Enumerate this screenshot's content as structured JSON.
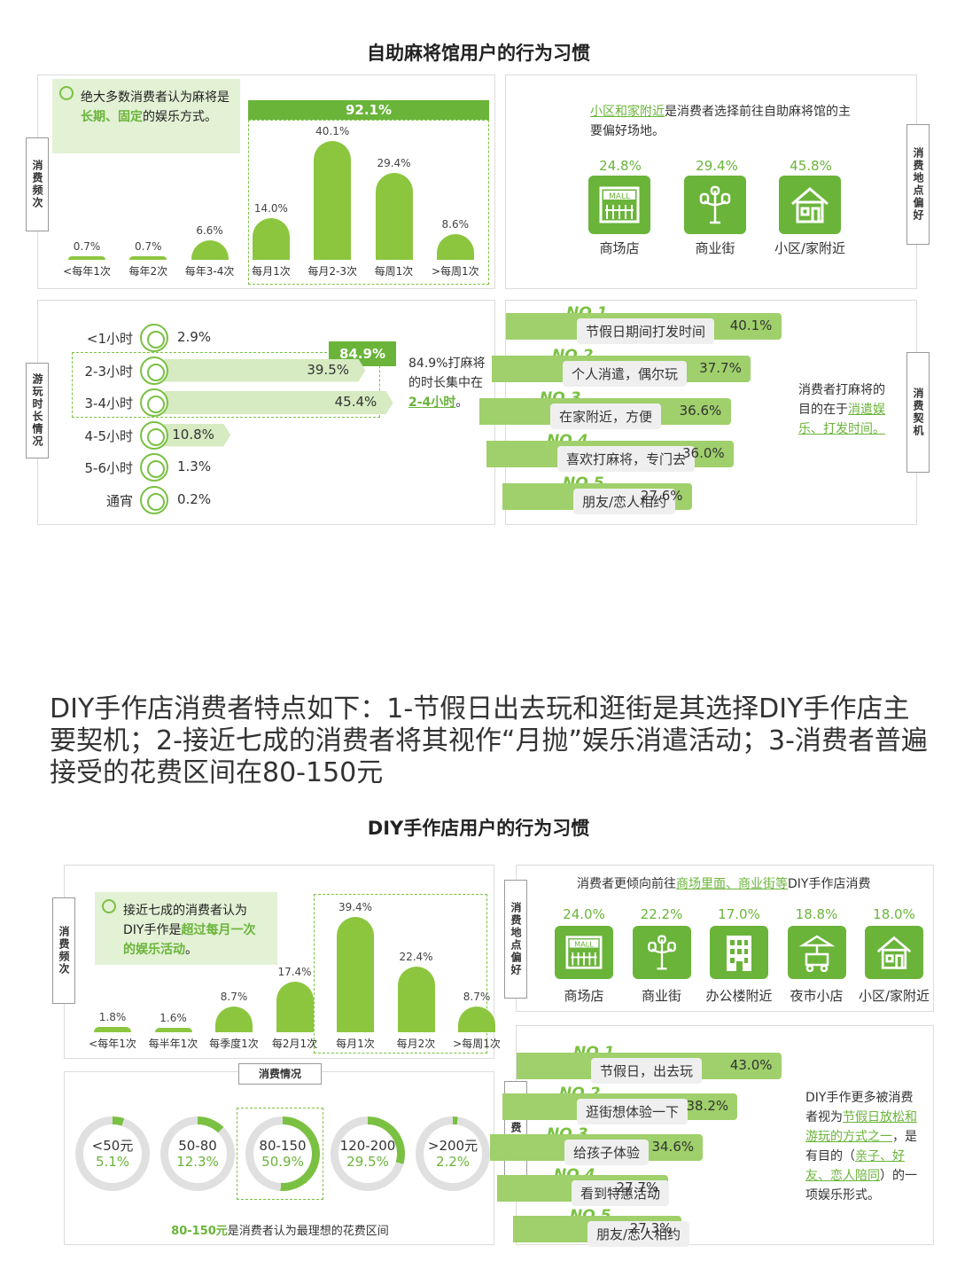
{
  "mahjong": {
    "title": "自助麻将馆用户的行为习惯",
    "freq": {
      "side_label": "消费频次",
      "callout": {
        "pre": "绝大多数消费者认为麻将是",
        "hl": "长期、固定",
        "post": "的娱乐方式。"
      },
      "highlight_total": "92.1%",
      "value_labels": [
        "0.7%",
        "0.7%",
        "6.6%",
        "14.0%",
        "40.1%",
        "29.4%",
        "8.6%"
      ]
    },
    "location": {
      "side_label": "消费地点偏好",
      "text_hl": "小区和家附近",
      "text_post": "是消费者选择前往自助麻将馆的主要偏好场地。",
      "items": [
        {
          "pct": "24.8%",
          "label": "商场店",
          "icon": "mall-icon"
        },
        {
          "pct": "29.4%",
          "label": "商业街",
          "icon": "street-lamp-icon"
        },
        {
          "pct": "45.8%",
          "label": "小区/家附近",
          "icon": "house-icon"
        }
      ]
    },
    "duration": {
      "side_label": "游玩时长情况",
      "rows": [
        {
          "label": "<1小时",
          "value": 2.9,
          "text": "2.9%"
        },
        {
          "label": "2-3小时",
          "value": 39.5,
          "text": "39.5%"
        },
        {
          "label": "3-4小时",
          "value": 45.4,
          "text": "45.4%"
        },
        {
          "label": "4-5小时",
          "value": 10.8,
          "text": "10.8%"
        },
        {
          "label": "5-6小时",
          "value": 1.3,
          "text": "1.3%"
        },
        {
          "label": "通宵",
          "value": 0.2,
          "text": "0.2%"
        }
      ],
      "highlight_total": "84.9%",
      "note_pre": "84.9%打麻将的时长集中在",
      "note_hl": "2-4小时",
      "note_post": "。"
    },
    "motive": {
      "side_label": "消费契机",
      "items": [
        {
          "rank": "NO.1",
          "label": "节假日期间打发时间",
          "value": 40.1,
          "text": "40.1%"
        },
        {
          "rank": "NO.2",
          "label": "个人消遣，偶尔玩",
          "value": 37.7,
          "text": "37.7%"
        },
        {
          "rank": "NO.3",
          "label": "在家附近，方便",
          "value": 36.6,
          "text": "36.6%"
        },
        {
          "rank": "NO.4",
          "label": "喜欢打麻将，专门去",
          "value": 36.0,
          "text": "36.0%"
        },
        {
          "rank": "NO.5",
          "label": "朋友/恋人相约",
          "value": 27.6,
          "text": "27.6%"
        }
      ],
      "note_pre": "消费者打麻将的目的在于",
      "note_hl": "消遣娱乐、打发时间。"
    }
  },
  "headline": "DIY手作店消费者特点如下：1-节假日出去玩和逛街是其选择DIY手作店主要契机；2-接近七成的消费者将其视作“月抛”娱乐消遣活动；3-消费者普遍接受的花费区间在80-150元",
  "diy": {
    "title": "DIY手作店用户的行为习惯",
    "freq": {
      "side_label": "消费频次",
      "callout": {
        "pre": "接近七成的消费者认为DIY手作是",
        "hl": "超过每月一次的娱乐活动",
        "post": "。"
      },
      "value_labels": [
        "1.8%",
        "1.6%",
        "8.7%",
        "17.4%",
        "39.4%",
        "22.4%",
        "8.7%"
      ]
    },
    "location": {
      "side_label": "消费地点偏好",
      "text_pre": "消费者更倾向前往",
      "text_hl": "商场里面、商业街等",
      "text_post": "DIY手作店消费",
      "items": [
        {
          "pct": "24.0%",
          "label": "商场店",
          "icon": "mall-icon"
        },
        {
          "pct": "22.2%",
          "label": "商业街",
          "icon": "street-lamp-icon"
        },
        {
          "pct": "17.0%",
          "label": "办公楼附近",
          "icon": "office-building-icon"
        },
        {
          "pct": "18.8%",
          "label": "夜市小店",
          "icon": "market-stall-icon"
        },
        {
          "pct": "18.0%",
          "label": "小区/家附近",
          "icon": "house-icon"
        }
      ]
    },
    "spend": {
      "header": "消费情况",
      "items": [
        {
          "label": "<50元",
          "value": 5.1,
          "text": "5.1%"
        },
        {
          "label": "50-80",
          "value": 12.3,
          "text": "12.3%"
        },
        {
          "label": "80-150",
          "value": 50.9,
          "text": "50.9%"
        },
        {
          "label": "120-200",
          "value": 29.5,
          "text": "29.5%"
        },
        {
          "label": ">200元",
          "value": 2.2,
          "text": "2.2%"
        }
      ],
      "note_hl": "80-150元",
      "note_post": "是消费者认为最理想的花费区间"
    },
    "motive": {
      "side_label": "消费契机",
      "items": [
        {
          "rank": "NO.1",
          "label": "节假日，出去玩",
          "value": 43.0,
          "text": "43.0%"
        },
        {
          "rank": "NO.2",
          "label": "逛街想体验一下",
          "value": 38.2,
          "text": "38.2%"
        },
        {
          "rank": "NO.3",
          "label": "给孩子体验",
          "value": 34.6,
          "text": "34.6%"
        },
        {
          "rank": "NO.4",
          "label": "看到特惠活动",
          "value": 27.7,
          "text": "27.7%"
        },
        {
          "rank": "NO.5",
          "label": "朋友/恋人相约",
          "value": 27.3,
          "text": "27.3%"
        }
      ],
      "note_pre1": "DIY手作更多被消费者视为",
      "note_hl1": "节假日放松和游玩的方式之一",
      "note_mid": "，是有目的（",
      "note_hl2": "亲子、好友、恋人陪同",
      "note_post": "）的一项娱乐形式。"
    }
  },
  "chart_data": [
    {
      "type": "bar",
      "categories": [
        "<每年1次",
        "每年2次",
        "每年3-4次",
        "每月1次",
        "每月2-3次",
        "每周1次",
        ">每周1次"
      ],
      "values": [
        0.7,
        0.7,
        6.6,
        14.0,
        40.1,
        29.4,
        8.6
      ]
    },
    {
      "type": "bar",
      "categories": [
        "<每年1次",
        "每半年1次",
        "每季度1次",
        "每2月1次",
        "每月1次",
        "每月2次",
        ">每周1次"
      ],
      "values": [
        1.8,
        1.6,
        8.7,
        17.4,
        39.4,
        22.4,
        8.7
      ]
    }
  ]
}
